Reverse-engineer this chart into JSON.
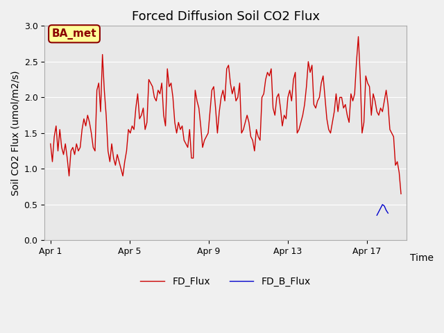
{
  "title": "Forced Diffusion Soil CO2 Flux",
  "xlabel": "Time",
  "ylabel": "Soil CO2 Flux (umol/m2/s)",
  "ylim": [
    0.0,
    3.0
  ],
  "yticks": [
    0.0,
    0.5,
    1.0,
    1.5,
    2.0,
    2.5,
    3.0
  ],
  "xtick_labels": [
    "Apr 1",
    "Apr 5",
    "Apr 9",
    "Apr 13",
    "Apr 17"
  ],
  "xtick_positions": [
    0,
    4,
    8,
    12,
    16
  ],
  "xlim": [
    -0.3,
    18.0
  ],
  "site_label": "BA_met",
  "legend_entries": [
    "FD_Flux",
    "FD_B_Flux"
  ],
  "line_colors": [
    "#cc0000",
    "#0000cc"
  ],
  "background_color": "#e8e8e8",
  "fig_background": "#f0f0f0",
  "fd_flux": [
    1.35,
    1.1,
    1.45,
    1.6,
    1.25,
    1.55,
    1.3,
    1.2,
    1.35,
    1.15,
    0.9,
    1.25,
    1.3,
    1.2,
    1.35,
    1.25,
    1.3,
    1.55,
    1.7,
    1.6,
    1.75,
    1.65,
    1.5,
    1.3,
    1.25,
    2.1,
    2.2,
    1.8,
    2.6,
    2.1,
    1.75,
    1.25,
    1.1,
    1.35,
    1.15,
    1.05,
    1.2,
    1.1,
    1.0,
    0.9,
    1.1,
    1.25,
    1.55,
    1.5,
    1.6,
    1.55,
    1.85,
    2.05,
    1.7,
    1.75,
    1.85,
    1.55,
    1.65,
    2.25,
    2.2,
    2.15,
    2.0,
    1.95,
    2.1,
    2.05,
    2.2,
    1.75,
    1.6,
    2.4,
    2.15,
    2.2,
    2.0,
    1.65,
    1.5,
    1.65,
    1.55,
    1.6,
    1.4,
    1.35,
    1.3,
    1.55,
    1.15,
    1.15,
    2.1,
    1.95,
    1.85,
    1.6,
    1.3,
    1.4,
    1.45,
    1.5,
    1.8,
    2.1,
    2.15,
    1.85,
    1.5,
    1.8,
    2.0,
    2.1,
    1.95,
    2.4,
    2.45,
    2.2,
    2.05,
    2.15,
    1.95,
    2.0,
    2.2,
    1.5,
    1.55,
    1.65,
    1.75,
    1.65,
    1.45,
    1.4,
    1.25,
    1.55,
    1.45,
    1.4,
    2.0,
    2.05,
    2.25,
    2.35,
    2.3,
    2.4,
    1.85,
    1.75,
    2.0,
    2.05,
    1.85,
    1.6,
    1.75,
    1.7,
    2.0,
    2.1,
    1.95,
    2.25,
    2.35,
    1.5,
    1.55,
    1.65,
    1.75,
    1.9,
    2.15,
    2.5,
    2.35,
    2.45,
    1.9,
    1.85,
    1.95,
    2.0,
    2.2,
    2.3,
    2.0,
    1.7,
    1.55,
    1.5,
    1.65,
    1.8,
    2.05,
    1.8,
    2.0,
    2.0,
    1.85,
    1.9,
    1.75,
    1.65,
    2.05,
    1.95,
    2.05,
    2.5,
    2.85,
    2.3,
    1.5,
    1.65,
    2.3,
    2.2,
    2.15,
    1.75,
    2.05,
    1.95,
    1.8,
    1.75,
    1.85,
    1.8,
    1.95,
    2.1,
    1.9,
    1.55,
    1.5,
    1.45,
    1.05,
    1.1,
    0.95,
    0.65
  ],
  "fd_flux_x_start": 0.0,
  "fd_flux_x_step": 0.09375,
  "fd_b_flux": [
    0.35,
    0.4,
    0.45,
    0.5,
    0.48,
    0.42,
    0.38
  ],
  "fd_b_flux_x_start": 16.5,
  "fd_b_flux_x_step": 0.09375,
  "grid_color": "#ffffff",
  "linewidth": 1.0,
  "title_fontsize": 13,
  "axis_fontsize": 10,
  "tick_fontsize": 9
}
